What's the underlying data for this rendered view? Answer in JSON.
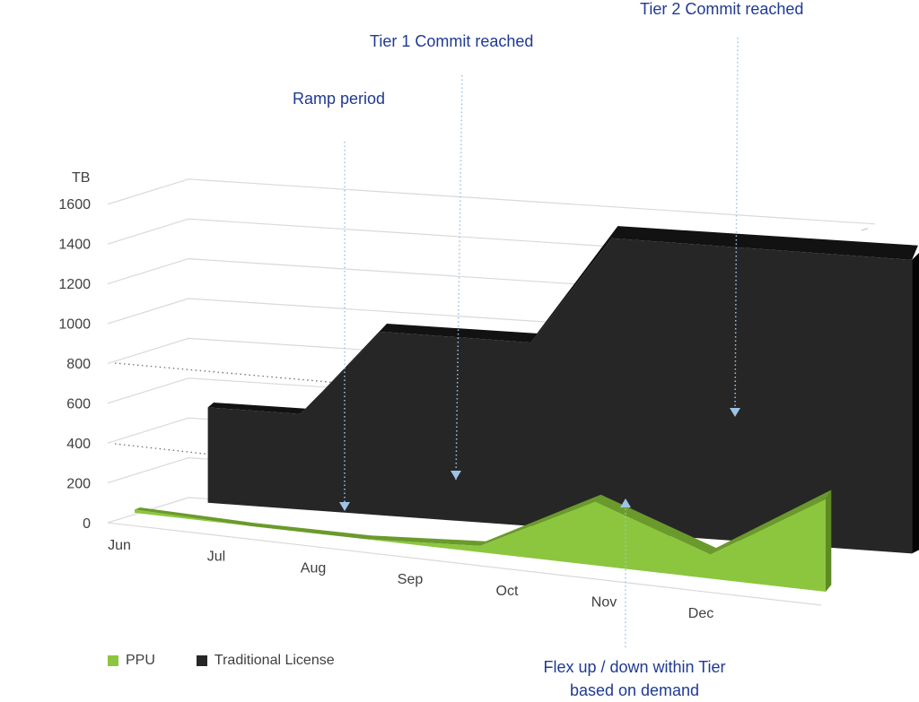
{
  "chart_data": {
    "type": "area",
    "style": "3d",
    "ylabel": "TB",
    "ylim": [
      0,
      1600
    ],
    "y_ticks": [
      0,
      200,
      400,
      600,
      800,
      1000,
      1200,
      1400,
      1600
    ],
    "categories": [
      "Jun",
      "Jul",
      "Aug",
      "Sep",
      "Oct",
      "Nov",
      "Dec"
    ],
    "grid": true,
    "legend_position": "bottom-left",
    "series": [
      {
        "name": "PPU",
        "color": "#8cc63f",
        "values": [
          20,
          0,
          0,
          40,
          400,
          150,
          580
        ]
      },
      {
        "name": "Traditional License",
        "color": "#262626",
        "values": [
          520,
          520,
          1000,
          1000,
          1600,
          1600,
          1600
        ]
      }
    ],
    "reference_lines": [
      {
        "y": 800,
        "style": "dotted"
      },
      {
        "y": 400,
        "style": "dotted"
      }
    ],
    "annotations": [
      {
        "text": "Ramp period",
        "category": "Aug"
      },
      {
        "text": "Tier 1 Commit reached",
        "category": "Sep"
      },
      {
        "text": "Tier 2 Commit reached",
        "category": "Dec"
      },
      {
        "text": "Flex up / down within Tier based on demand",
        "category": "Nov"
      }
    ]
  }
}
